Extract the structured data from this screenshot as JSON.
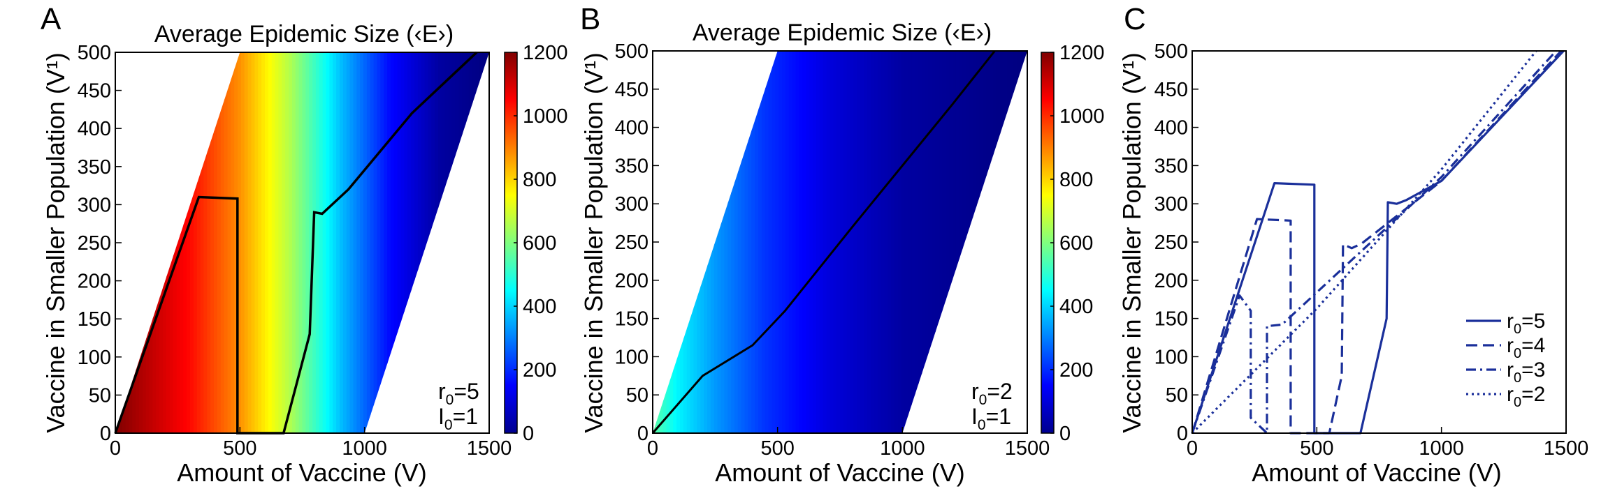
{
  "colors": {
    "curve": "#1a2f9a",
    "contour": "#000000",
    "frame": "#000000"
  },
  "chart_data": [
    {
      "type": "heatmap",
      "panel": "A",
      "title": "Average Epidemic Size (‹E›)",
      "xlabel": "Amount of Vaccine (V)",
      "ylabel": "Vaccine in Smaller Population (V¹)",
      "xlim": [
        0,
        1500
      ],
      "ylim": [
        0,
        500
      ],
      "xticks": [
        0,
        500,
        1000,
        1500
      ],
      "yticks": [
        0,
        50,
        100,
        150,
        200,
        250,
        300,
        350,
        400,
        450,
        500
      ],
      "colorbar": {
        "range": [
          0,
          1200
        ],
        "ticks": [
          0,
          200,
          400,
          600,
          800,
          1000,
          1200
        ]
      },
      "feasible_region": [
        [
          0,
          0
        ],
        [
          1000,
          0
        ],
        [
          1500,
          500
        ],
        [
          500,
          500
        ]
      ],
      "field": {
        "r0": 5,
        "values_at_V": [
          [
            0,
            1200
          ],
          [
            300,
            1040
          ],
          [
            500,
            880
          ],
          [
            700,
            660
          ],
          [
            900,
            380
          ],
          [
            1100,
            160
          ],
          [
            1300,
            40
          ],
          [
            1500,
            0
          ]
        ]
      },
      "optimal_contour": [
        [
          0,
          0
        ],
        [
          335,
          310
        ],
        [
          490,
          308
        ],
        [
          490,
          0
        ],
        [
          675,
          0
        ],
        [
          780,
          130
        ],
        [
          798,
          290
        ],
        [
          830,
          288
        ],
        [
          935,
          320
        ],
        [
          1190,
          420
        ],
        [
          1450,
          500
        ]
      ],
      "annotation": {
        "r_label": "r",
        "r_sub": "0",
        "r_value": "=5",
        "i_label": "I",
        "i_sub": "0",
        "i_value": "=1"
      }
    },
    {
      "type": "heatmap",
      "panel": "B",
      "title": "Average Epidemic Size (‹E›)",
      "xlabel": "Amount of Vaccine (V)",
      "ylabel": "Vaccine in Smaller Population (V¹)",
      "xlim": [
        0,
        1500
      ],
      "ylim": [
        0,
        500
      ],
      "xticks": [
        0,
        500,
        1000,
        1500
      ],
      "yticks": [
        0,
        50,
        100,
        150,
        200,
        250,
        300,
        350,
        400,
        450,
        500
      ],
      "colorbar": {
        "range": [
          0,
          1200
        ],
        "ticks": [
          0,
          200,
          400,
          600,
          800,
          1000,
          1200
        ]
      },
      "feasible_region": [
        [
          0,
          0
        ],
        [
          1000,
          0
        ],
        [
          1500,
          500
        ],
        [
          500,
          500
        ]
      ],
      "field": {
        "r0": 2,
        "values_at_V": [
          [
            0,
            560
          ],
          [
            100,
            440
          ],
          [
            250,
            330
          ],
          [
            450,
            210
          ],
          [
            700,
            110
          ],
          [
            1000,
            40
          ],
          [
            1500,
            0
          ]
        ]
      },
      "optimal_contour": [
        [
          0,
          0
        ],
        [
          200,
          75
        ],
        [
          400,
          115
        ],
        [
          530,
          160
        ],
        [
          800,
          270
        ],
        [
          1050,
          370
        ],
        [
          1200,
          430
        ],
        [
          1370,
          500
        ]
      ],
      "annotation": {
        "r_label": "r",
        "r_sub": "0",
        "r_value": "=2",
        "i_label": "I",
        "i_sub": "0",
        "i_value": "=1"
      }
    },
    {
      "type": "line",
      "panel": "C",
      "xlabel": "Amount of Vaccine (V)",
      "ylabel": "Vaccine in Smaller Population (V¹)",
      "xlim": [
        0,
        1500
      ],
      "ylim": [
        0,
        500
      ],
      "xticks": [
        0,
        500,
        1000,
        1500
      ],
      "yticks": [
        0,
        50,
        100,
        150,
        200,
        250,
        300,
        350,
        400,
        450,
        500
      ],
      "legend_position": "lower-right",
      "series": [
        {
          "name": "r0=5",
          "label_main": "r",
          "label_sub": "0",
          "label_value": "=5",
          "style": "solid",
          "x": [
            0,
            330,
            490,
            490,
            672,
            675,
            780,
            785,
            820,
            860,
            1000,
            1490
          ],
          "y": [
            0,
            327,
            325,
            0,
            0,
            0,
            150,
            302,
            300,
            305,
            330,
            500
          ]
        },
        {
          "name": "r0=4",
          "label_main": "r",
          "label_sub": "0",
          "label_value": "=4",
          "style": "dash",
          "x": [
            0,
            260,
            395,
            395,
            550,
            600,
            605,
            640,
            680,
            1000,
            1480
          ],
          "y": [
            0,
            280,
            278,
            0,
            0,
            75,
            247,
            242,
            248,
            330,
            500
          ]
        },
        {
          "name": "r0=3",
          "label_main": "r",
          "label_sub": "0",
          "label_value": "=3",
          "style": "dashdot",
          "x": [
            0,
            190,
            235,
            235,
            300,
            300,
            360,
            1000,
            1460
          ],
          "y": [
            0,
            180,
            160,
            20,
            0,
            140,
            142,
            335,
            500
          ]
        },
        {
          "name": "r0=2",
          "label_main": "r",
          "label_sub": "0",
          "label_value": "=2",
          "style": "dot",
          "x": [
            0,
            500,
            1000,
            1380
          ],
          "y": [
            0,
            163,
            345,
            500
          ]
        }
      ]
    }
  ]
}
